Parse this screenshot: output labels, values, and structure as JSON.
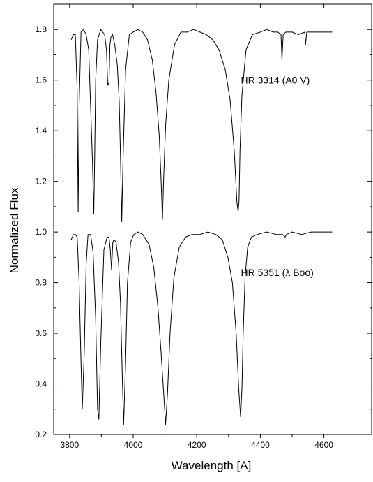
{
  "chart_data": {
    "type": "line",
    "title": "",
    "xlabel": "Wavelength [A]",
    "ylabel": "Normalized Flux",
    "xlim": [
      3750,
      4750
    ],
    "ylim": [
      0.2,
      1.9
    ],
    "xticks": [
      3800,
      4000,
      4200,
      4400,
      4600
    ],
    "xtick_labels": [
      "3800",
      "4000",
      "4200",
      "4400",
      "4600"
    ],
    "yticks": [
      0.2,
      0.4,
      0.6,
      0.8,
      1.0,
      1.2,
      1.4,
      1.6,
      1.8
    ],
    "ytick_labels": [
      "0.2",
      "0.4",
      "0.6",
      "0.8",
      "1.0",
      "1.2",
      "1.4",
      "1.6",
      "1.8"
    ],
    "grid": false,
    "line_color": "#000000",
    "series": [
      {
        "x": [
          3805,
          3812,
          3818,
          3824,
          3827,
          3830,
          3836,
          3844,
          3852,
          3860,
          3866,
          3872,
          3876,
          3879,
          3882,
          3888,
          3898,
          3910,
          3916,
          3920,
          3924,
          3927,
          3930,
          3935,
          3942,
          3950,
          3956,
          3960,
          3964,
          3968,
          3976,
          3988,
          4000,
          4015,
          4030,
          4045,
          4060,
          4072,
          4082,
          4088,
          4092,
          4096,
          4102,
          4112,
          4130,
          4150,
          4170,
          4190,
          4210,
          4230,
          4250,
          4270,
          4290,
          4305,
          4318,
          4326,
          4330,
          4333,
          4336,
          4342,
          4355,
          4375,
          4400,
          4420,
          4440,
          4455,
          4465,
          4468,
          4472,
          4480,
          4500,
          4520,
          4540,
          4542,
          4546,
          4560,
          4580,
          4600,
          4626
        ],
        "y": [
          1.76,
          1.78,
          1.78,
          1.56,
          1.08,
          1.5,
          1.79,
          1.8,
          1.78,
          1.72,
          1.5,
          1.28,
          1.07,
          1.3,
          1.6,
          1.76,
          1.8,
          1.78,
          1.72,
          1.58,
          1.59,
          1.74,
          1.77,
          1.78,
          1.74,
          1.66,
          1.52,
          1.3,
          1.04,
          1.28,
          1.64,
          1.78,
          1.79,
          1.8,
          1.79,
          1.76,
          1.68,
          1.55,
          1.38,
          1.2,
          1.05,
          1.22,
          1.42,
          1.6,
          1.74,
          1.79,
          1.79,
          1.8,
          1.79,
          1.78,
          1.76,
          1.72,
          1.64,
          1.52,
          1.32,
          1.12,
          1.08,
          1.12,
          1.32,
          1.54,
          1.72,
          1.78,
          1.79,
          1.8,
          1.79,
          1.79,
          1.78,
          1.68,
          1.78,
          1.79,
          1.79,
          1.78,
          1.79,
          1.74,
          1.79,
          1.79,
          1.79,
          1.79,
          1.79
        ]
      },
      {
        "x": [
          3805,
          3812,
          3818,
          3824,
          3830,
          3836,
          3840,
          3846,
          3852,
          3858,
          3866,
          3874,
          3882,
          3888,
          3892,
          3898,
          3908,
          3918,
          3924,
          3928,
          3932,
          3936,
          3940,
          3946,
          3954,
          3960,
          3966,
          3970,
          3976,
          3982,
          3992,
          4002,
          4015,
          4030,
          4050,
          4065,
          4078,
          4088,
          4096,
          4102,
          4108,
          4116,
          4128,
          4145,
          4165,
          4185,
          4210,
          4235,
          4260,
          4280,
          4298,
          4312,
          4324,
          4332,
          4338,
          4342,
          4346,
          4352,
          4360,
          4372,
          4390,
          4420,
          4450,
          4470,
          4478,
          4482,
          4500,
          4530,
          4560,
          4600,
          4626
        ],
        "y": [
          0.97,
          0.99,
          0.99,
          0.98,
          0.8,
          0.48,
          0.3,
          0.52,
          0.87,
          0.99,
          0.99,
          0.92,
          0.66,
          0.3,
          0.26,
          0.56,
          0.93,
          0.98,
          0.98,
          0.93,
          0.85,
          0.96,
          0.97,
          0.96,
          0.88,
          0.72,
          0.42,
          0.24,
          0.48,
          0.8,
          0.96,
          0.99,
          1.0,
          0.99,
          0.95,
          0.86,
          0.7,
          0.52,
          0.36,
          0.24,
          0.36,
          0.6,
          0.82,
          0.94,
          0.98,
          0.99,
          0.99,
          1.0,
          0.99,
          0.97,
          0.9,
          0.8,
          0.6,
          0.38,
          0.27,
          0.38,
          0.6,
          0.82,
          0.94,
          0.98,
          0.99,
          1.0,
          0.99,
          0.99,
          0.98,
          0.99,
          1.0,
          0.99,
          1.0,
          1.0,
          1.0
        ]
      }
    ],
    "annotations": [
      {
        "text": "HR 3314 (A0 V)",
        "x": 4420,
        "y": 1.6
      },
      {
        "text": "HR 5351 (λ Boo)",
        "x": 4420,
        "y": 0.84
      }
    ]
  }
}
